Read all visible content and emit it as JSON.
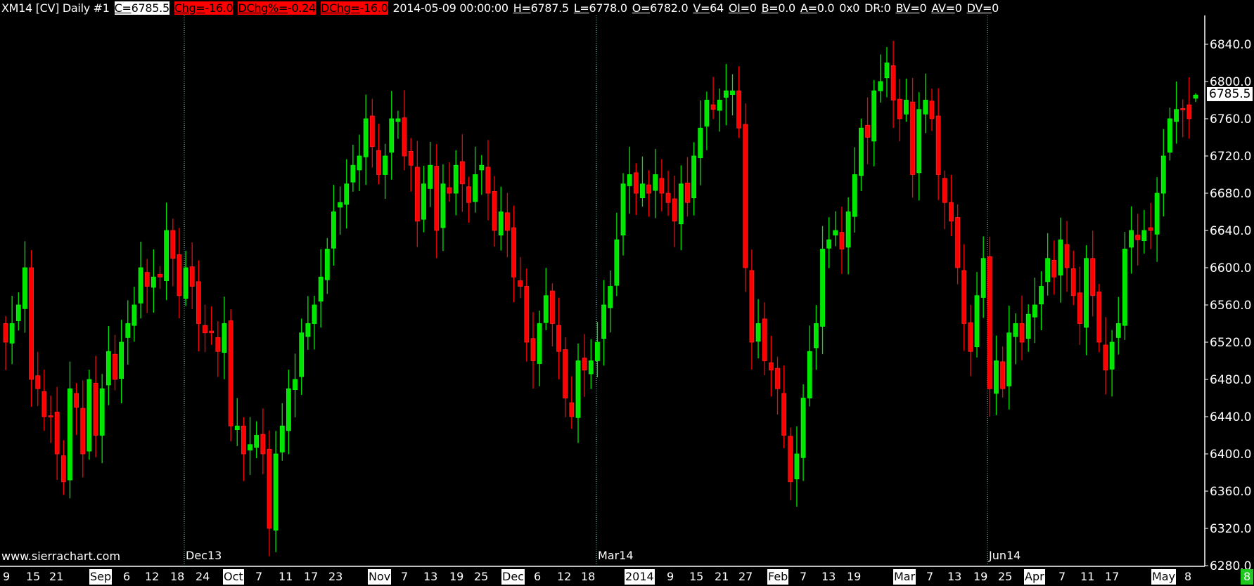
{
  "header": [
    {
      "text": "XM14 [CV]  Daily  #1",
      "style": "plain"
    },
    {
      "key": "C",
      "value": "6785.5",
      "style": "white"
    },
    {
      "key": "Chg",
      "value": "-16.0",
      "style": "red"
    },
    {
      "key": "DChg%",
      "value": "-0.24",
      "style": "red"
    },
    {
      "key": "DChg",
      "value": "-16.0",
      "style": "red"
    },
    {
      "text": "2014-05-09 00:00:00",
      "style": "plain"
    },
    {
      "key": "H",
      "value": "6787.5",
      "style": "plain"
    },
    {
      "key": "L",
      "value": "6778.0",
      "style": "plain"
    },
    {
      "key": "O",
      "value": "6782.0",
      "style": "plain"
    },
    {
      "key": "V",
      "value": "64",
      "style": "plain"
    },
    {
      "key": "OI",
      "value": "0",
      "style": "plain"
    },
    {
      "key": "B",
      "value": "0.0",
      "style": "plain"
    },
    {
      "key": "A",
      "value": "0.0",
      "style": "plain"
    },
    {
      "text": "0x0",
      "style": "plain"
    },
    {
      "text": "DR:0",
      "style": "plain"
    },
    {
      "key": "BV",
      "value": "0",
      "style": "plain"
    },
    {
      "key": "AV",
      "value": "0",
      "style": "plain"
    },
    {
      "key": "DV",
      "value": "0",
      "style": "plain"
    }
  ],
  "watermark": "www.sierrachart.com",
  "last_price_label": "6785.5",
  "chart_data": {
    "type": "candlestick",
    "symbol": "XM14 [CV]",
    "interval": "Daily",
    "ylim": [
      6280,
      6860
    ],
    "yticks": [
      "6840.0",
      "6800.0",
      "6760.0",
      "6720.0",
      "6680.0",
      "6640.0",
      "6600.0",
      "6560.0",
      "6520.0",
      "6480.0",
      "6440.0",
      "6400.0",
      "6360.0",
      "6320.0",
      "6280.0"
    ],
    "period_markers": [
      "Dec13",
      "Mar14",
      "Jun14"
    ],
    "xticks": [
      {
        "label": "9"
      },
      {
        "label": "15"
      },
      {
        "label": "21"
      },
      {
        "label": "Sep",
        "highlight": true
      },
      {
        "label": "6"
      },
      {
        "label": "12"
      },
      {
        "label": "18"
      },
      {
        "label": "24"
      },
      {
        "label": "Oct",
        "highlight": true
      },
      {
        "label": "7"
      },
      {
        "label": "11"
      },
      {
        "label": "17"
      },
      {
        "label": "23"
      },
      {
        "label": "Nov",
        "highlight": true
      },
      {
        "label": "7"
      },
      {
        "label": "13"
      },
      {
        "label": "19"
      },
      {
        "label": "25"
      },
      {
        "label": "Dec",
        "highlight": true
      },
      {
        "label": "6"
      },
      {
        "label": "12"
      },
      {
        "label": "18"
      },
      {
        "label": "2014",
        "highlight": true
      },
      {
        "label": "9"
      },
      {
        "label": "15"
      },
      {
        "label": "21"
      },
      {
        "label": "27"
      },
      {
        "label": "Feb",
        "highlight": true
      },
      {
        "label": "7"
      },
      {
        "label": "13"
      },
      {
        "label": "19"
      },
      {
        "label": "Mar",
        "highlight": true
      },
      {
        "label": "7"
      },
      {
        "label": "13"
      },
      {
        "label": "19"
      },
      {
        "label": "25"
      },
      {
        "label": "Apr",
        "highlight": true
      },
      {
        "label": "7"
      },
      {
        "label": "11"
      },
      {
        "label": "17"
      },
      {
        "label": "May",
        "highlight": true
      },
      {
        "label": "8"
      },
      {
        "label": "8",
        "current": true
      }
    ],
    "closes": [
      6520,
      6540,
      6560,
      6600,
      6480,
      6470,
      6440,
      6440,
      6400,
      6370,
      6470,
      6450,
      6400,
      6480,
      6420,
      6470,
      6510,
      6480,
      6520,
      6540,
      6560,
      6600,
      6580,
      6590,
      6590,
      6640,
      6610,
      6570,
      6600,
      6580,
      6540,
      6530,
      6530,
      6510,
      6540,
      6430,
      6430,
      6400,
      6410,
      6420,
      6400,
      6320,
      6400,
      6430,
      6470,
      6480,
      6530,
      6540,
      6560,
      6590,
      6620,
      6660,
      6670,
      6690,
      6710,
      6720,
      6760,
      6730,
      6700,
      6720,
      6760,
      6760,
      6720,
      6710,
      6650,
      6690,
      6710,
      6640,
      6690,
      6680,
      6710,
      6690,
      6670,
      6700,
      6710,
      6680,
      6640,
      6660,
      6640,
      6590,
      6580,
      6520,
      6500,
      6540,
      6570,
      6540,
      6510,
      6460,
      6440,
      6500,
      6490,
      6500,
      6520,
      6560,
      6580,
      6630,
      6690,
      6700,
      6680,
      6690,
      6680,
      6700,
      6680,
      6670,
      6650,
      6690,
      6670,
      6720,
      6750,
      6780,
      6770,
      6780,
      6790,
      6790,
      6750,
      6600,
      6520,
      6540,
      6500,
      6490,
      6470,
      6420,
      6370,
      6400,
      6460,
      6510,
      6540,
      6620,
      6630,
      6640,
      6620,
      6660,
      6700,
      6750,
      6740,
      6790,
      6800,
      6820,
      6780,
      6760,
      6780,
      6700,
      6770,
      6780,
      6760,
      6700,
      6670,
      6650,
      6600,
      6540,
      6510,
      6570,
      6610,
      6470,
      6500,
      6470,
      6530,
      6540,
      6520,
      6550,
      6560,
      6580,
      6610,
      6590,
      6630,
      6600,
      6570,
      6540,
      6610,
      6570,
      6520,
      6490,
      6520,
      6540,
      6620,
      6640,
      6630,
      6640,
      6640,
      6680,
      6720,
      6760,
      6770,
      6770,
      6760,
      6801.5
    ],
    "last_bar": {
      "date": "2014-05-09",
      "open": 6782.0,
      "high": 6787.5,
      "low": 6778.0,
      "close": 6785.5,
      "volume": 64
    },
    "colors": {
      "up": "#00e600",
      "down": "#ff0000",
      "background": "#000000",
      "period_line": "#80e0e0"
    }
  }
}
